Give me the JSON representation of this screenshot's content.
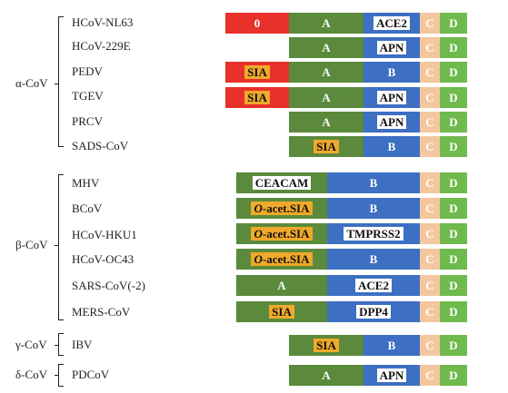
{
  "groups": [
    {
      "label": "α-CoV"
    },
    {
      "label": "β-CoV"
    },
    {
      "label": "γ-CoV"
    },
    {
      "label": "δ-CoV"
    }
  ],
  "viruses": [
    {
      "name": "HCoV-NL63"
    },
    {
      "name": "HCoV-229E"
    },
    {
      "name": "PEDV"
    },
    {
      "name": "TGEV"
    },
    {
      "name": "PRCV"
    },
    {
      "name": "SADS-CoV"
    },
    {
      "name": "MHV"
    },
    {
      "name": "BCoV"
    },
    {
      "name": "HCoV-HKU1"
    },
    {
      "name": "HCoV-OC43"
    },
    {
      "name": "SARS-CoV(-2)"
    },
    {
      "name": "MERS-CoV"
    },
    {
      "name": "IBV"
    },
    {
      "name": "PDCoV"
    }
  ],
  "domains": {
    "zero": "0",
    "a": "A",
    "b": "B",
    "c": "C",
    "d": "D"
  },
  "receptors": {
    "ace2": "ACE2",
    "apn": "APN",
    "sia": "SIA",
    "ceacam": "CEACAM",
    "o_prefix": "O",
    "acet_sia": "-acet.SIA",
    "tmprss2": "TMPRSS2",
    "dpp4": "DPP4"
  },
  "colors": {
    "domain_0": "#e8312a",
    "domain_a": "#5b8a3c",
    "domain_b": "#3d6fc2",
    "domain_c": "#f4c79f",
    "domain_d": "#6fba4c",
    "receptor_box_orange": "#f0a92a",
    "receptor_box_white": "#ffffff"
  }
}
